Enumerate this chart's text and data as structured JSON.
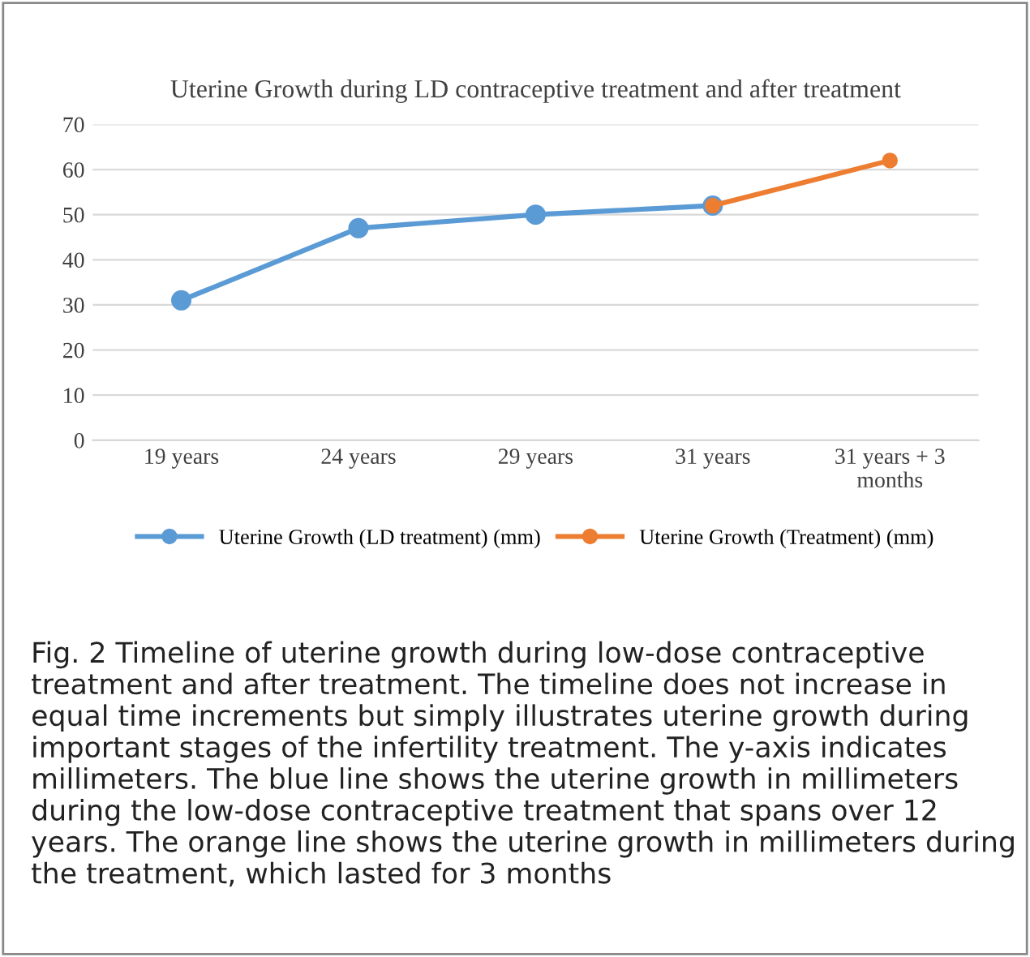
{
  "chart_data": {
    "type": "line",
    "title": "Uterine Growth during LD contraceptive treatment and after treatment",
    "categories": [
      "19 years",
      "24 years",
      "29 years",
      "31 years",
      "31 years + 3\nmonths"
    ],
    "series": [
      {
        "name": "Uterine Growth (LD treatment) (mm)",
        "color": "#5b9bd5",
        "values": [
          31,
          47,
          50,
          52,
          null
        ]
      },
      {
        "name": "Uterine Growth (Treatment) (mm)",
        "color": "#ed7d31",
        "values": [
          null,
          null,
          null,
          52,
          62
        ]
      }
    ],
    "ylim": [
      0,
      70
    ],
    "yticks": [
      0,
      10,
      20,
      30,
      40,
      50,
      60,
      70
    ],
    "grid": "y",
    "legend": "bottom",
    "marker": "circle",
    "line_style": "solid",
    "annotations": [
      "Fig. 2 Timeline of uterine growth during low-dose contraceptive treatment and after treatment. The timeline does not increase in equal time increments but simply illustrates uterine growth during important stages of the infertility treatment. The y-axis indicates millimeters. The blue line shows the uterine growth in millimeters during the low-dose contraceptive treatment that spans over 12 years. The orange line shows the uterine growth in millimeters during the treatment, which lasted for 3 months"
    ]
  }
}
